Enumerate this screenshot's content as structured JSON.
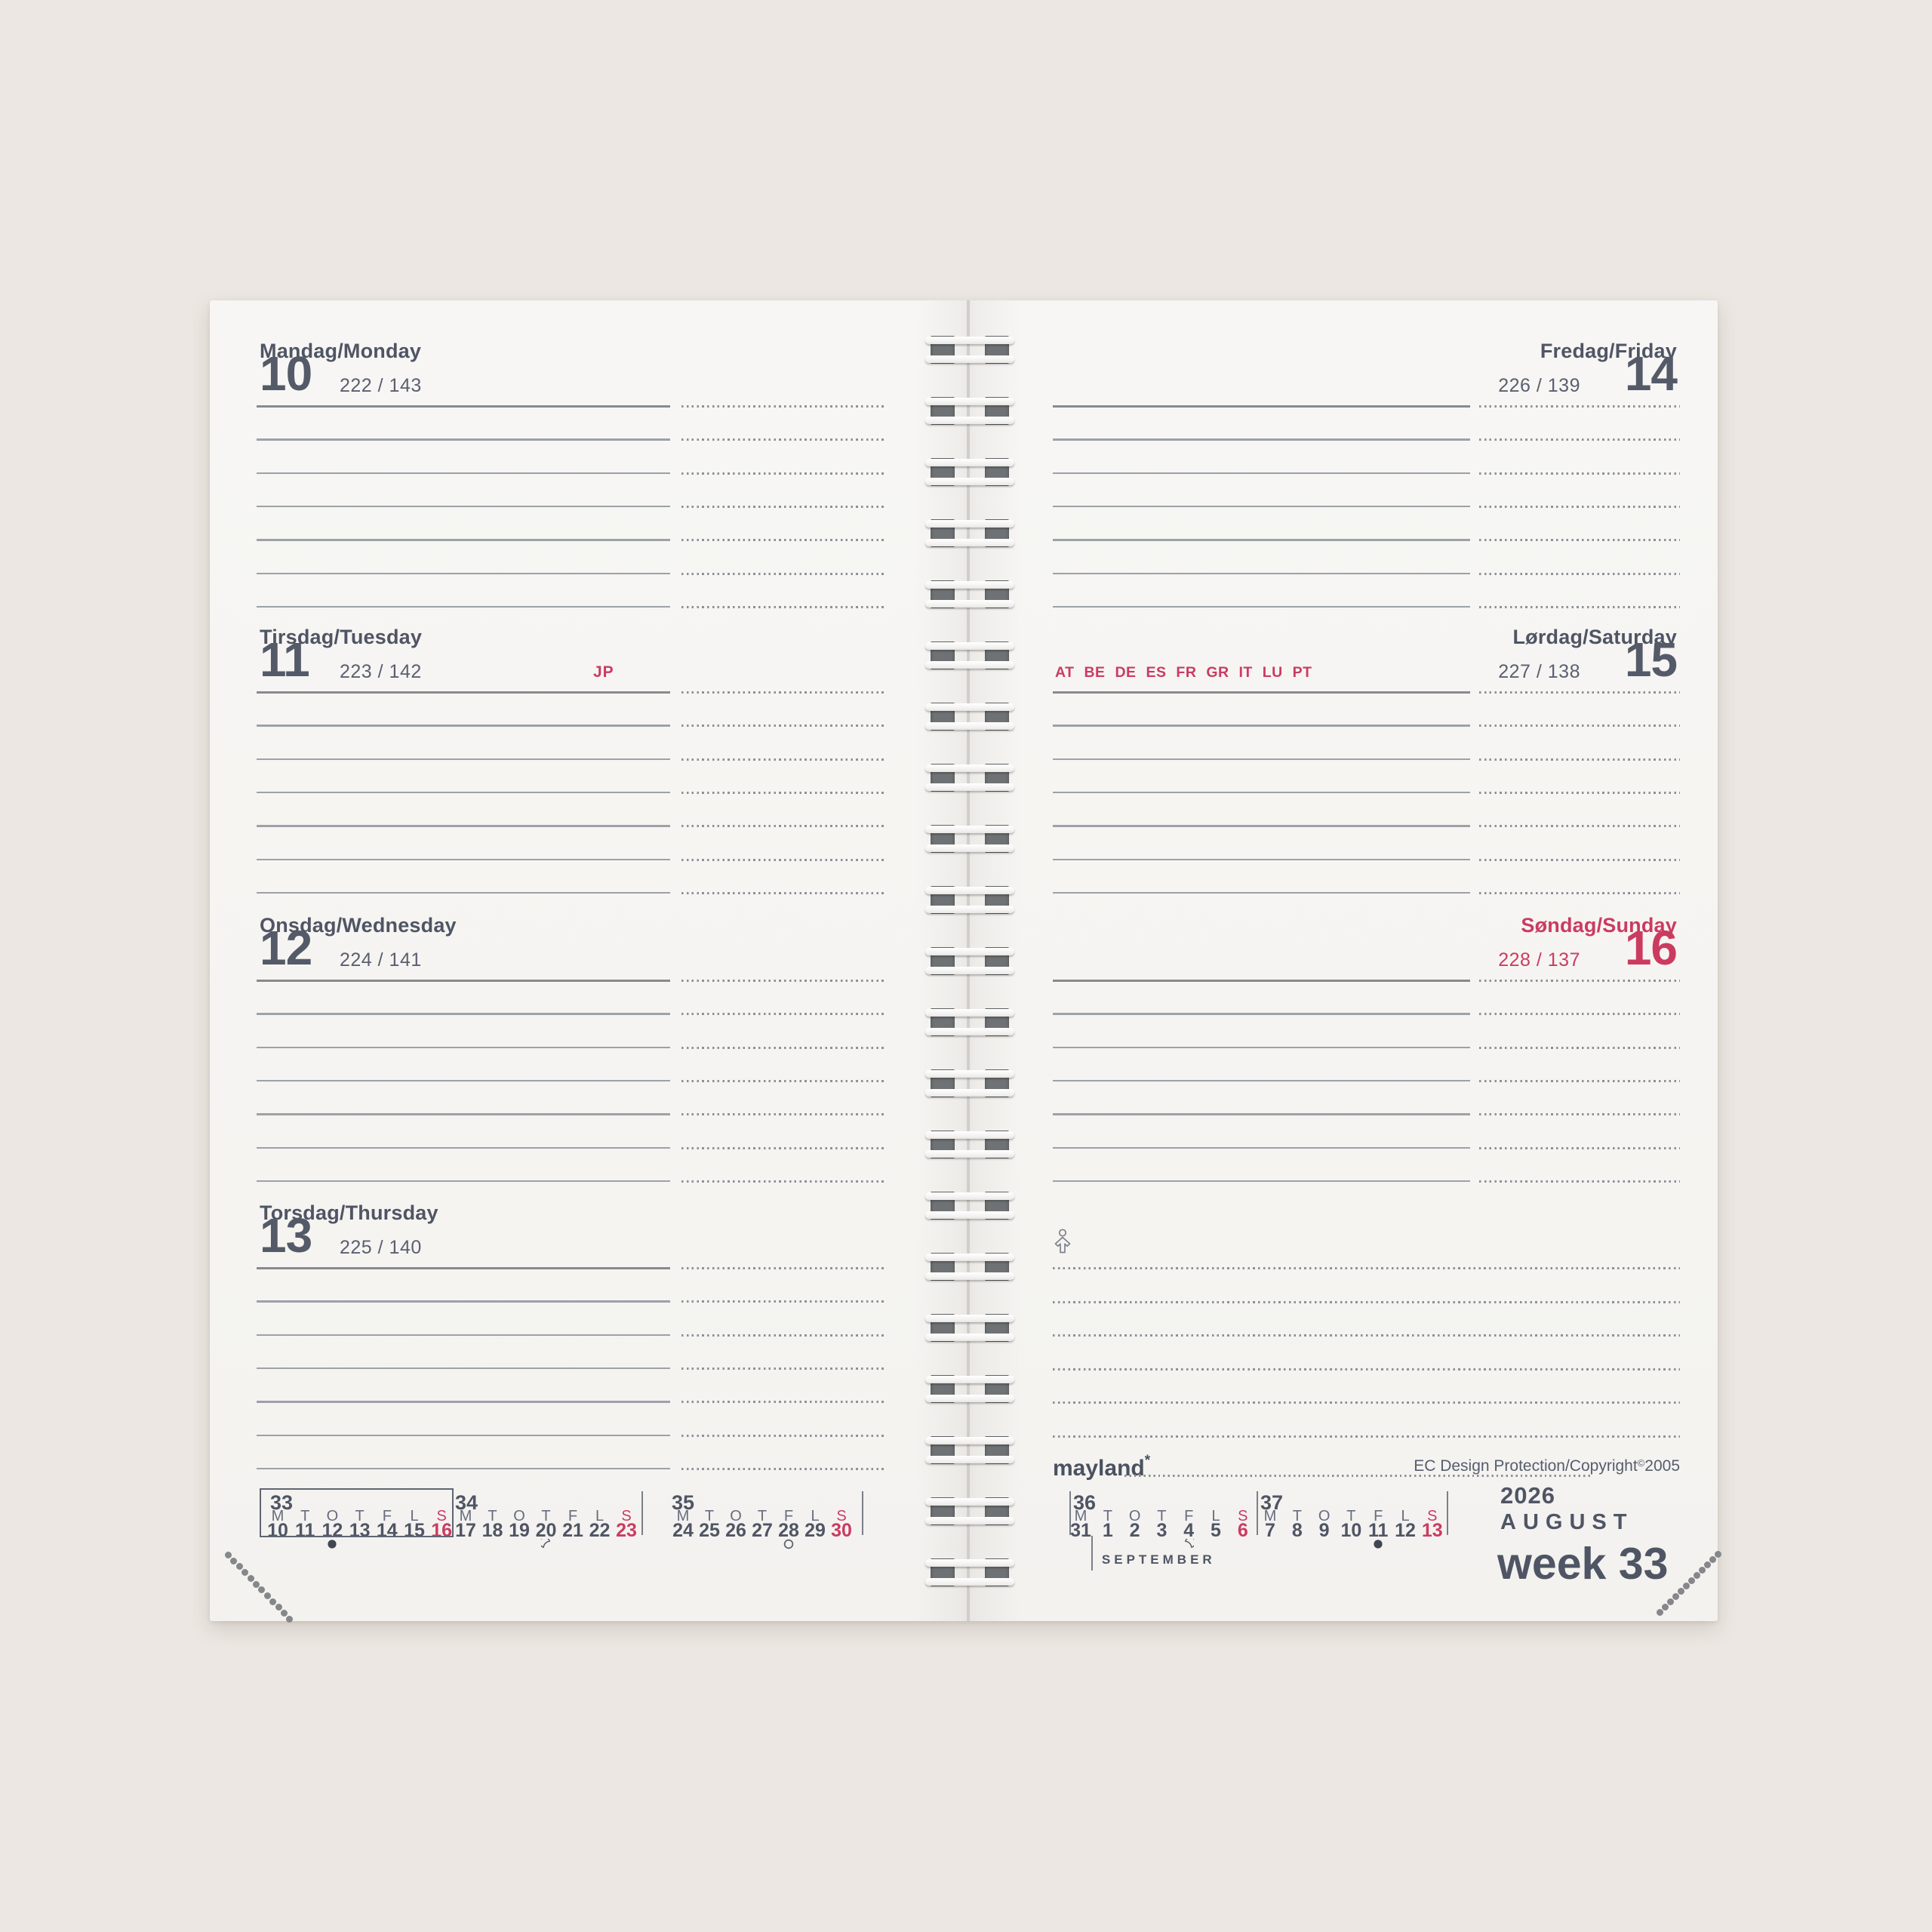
{
  "week_panel": {
    "year": "2026",
    "month": "AUGUST",
    "week_word": "week",
    "week_number": "33"
  },
  "footer": {
    "logo": "mayland",
    "logo_mark": "*",
    "copyright": "EC Design Protection/Copyright",
    "copyright_symbol": "©",
    "copyright_year": "2005"
  },
  "left_page": {
    "days": [
      {
        "id": "monday",
        "label": "Mandag/Monday",
        "date": "10",
        "day_of_year": "222 / 143"
      },
      {
        "id": "tuesday",
        "label": "Tirsdag/Tuesday",
        "date": "11",
        "day_of_year": "223 / 142",
        "holiday_codes": "JP"
      },
      {
        "id": "wednesday",
        "label": "Onsdag/Wednesday",
        "date": "12",
        "day_of_year": "224 / 141"
      },
      {
        "id": "thursday",
        "label": "Torsdag/Thursday",
        "date": "13",
        "day_of_year": "225 / 140"
      }
    ]
  },
  "right_page": {
    "days": [
      {
        "id": "friday",
        "label": "Fredag/Friday",
        "date": "14",
        "day_of_year": "226 / 139"
      },
      {
        "id": "saturday",
        "label": "Lørdag/Saturday",
        "date": "15",
        "day_of_year": "227 / 138",
        "holiday_codes": "AT BE DE ES FR GR IT LU PT"
      },
      {
        "id": "sunday",
        "label": "Søndag/Sunday",
        "date": "16",
        "day_of_year": "228 / 137",
        "highlight": true
      }
    ]
  },
  "mini_calendars": {
    "day_letters": [
      "M",
      "T",
      "O",
      "T",
      "F",
      "L",
      "S"
    ],
    "weeks": [
      {
        "week": "33",
        "dates": [
          "10",
          "11",
          "12",
          "13",
          "14",
          "15",
          "16"
        ],
        "boxed": true,
        "moon": {
          "phase": "new",
          "col": 2
        }
      },
      {
        "week": "34",
        "dates": [
          "17",
          "18",
          "19",
          "20",
          "21",
          "22",
          "23"
        ],
        "boxed": false,
        "moon": {
          "phase": "first_quarter",
          "col": 3
        }
      },
      {
        "week": "35",
        "dates": [
          "24",
          "25",
          "26",
          "27",
          "28",
          "29",
          "30"
        ],
        "boxed": false,
        "moon": {
          "phase": "full",
          "col": 4
        }
      },
      {
        "week": "36",
        "dates": [
          "31",
          "1",
          "2",
          "3",
          "4",
          "5",
          "6"
        ],
        "boxed": false,
        "moon": {
          "phase": "last_quarter",
          "col": 4
        },
        "month_start_label": "SEPTEMBER"
      },
      {
        "week": "37",
        "dates": [
          "7",
          "8",
          "9",
          "10",
          "11",
          "12",
          "13"
        ],
        "boxed": false,
        "moon": {
          "phase": "new",
          "col": 4
        }
      }
    ]
  },
  "colors": {
    "accent_red": "#cb3b60",
    "ink": "#4f5564",
    "ink_light": "#5a6070"
  }
}
